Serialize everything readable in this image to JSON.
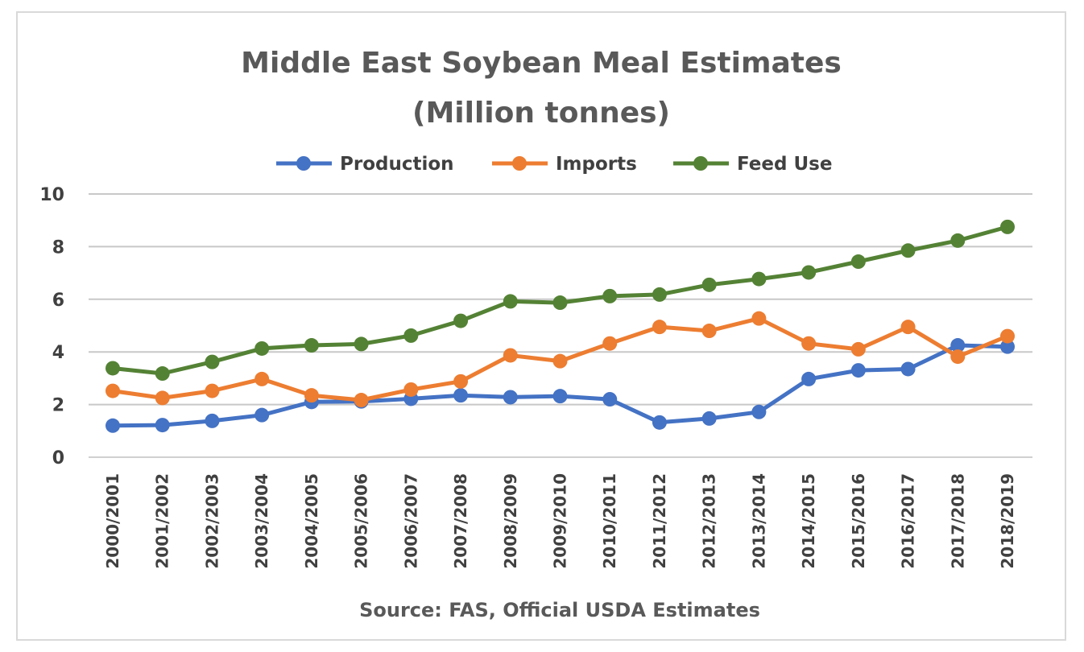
{
  "chart_data": {
    "type": "line",
    "title_lines": [
      "Middle East Soybean Meal Estimates",
      "(Million tonnes)"
    ],
    "xlabel": "Source: FAS, Official USDA Estimates",
    "ylabel": "",
    "ylim": [
      0,
      10
    ],
    "yticks": [
      "0",
      "2",
      "4",
      "6",
      "8",
      "10"
    ],
    "grid": true,
    "legend_position": "top",
    "categories": [
      "2000/2001",
      "2001/2002",
      "2002/2003",
      "2003/2004",
      "2004/2005",
      "2005/2006",
      "2006/2007",
      "2007/2008",
      "2008/2009",
      "2009/2010",
      "2010/2011",
      "2011/2012",
      "2012/2013",
      "2013/2014",
      "2014/2015",
      "2015/2016",
      "2016/2017",
      "2017/2018",
      "2018/2019"
    ],
    "series": [
      {
        "name": "Production",
        "color": "#4472c4",
        "values": [
          1.2,
          1.22,
          1.38,
          1.6,
          2.1,
          2.12,
          2.22,
          2.35,
          2.28,
          2.32,
          2.2,
          1.32,
          1.47,
          1.72,
          2.97,
          3.3,
          3.35,
          4.25,
          4.2
        ]
      },
      {
        "name": "Imports",
        "color": "#ed7d31",
        "values": [
          2.52,
          2.25,
          2.52,
          2.97,
          2.35,
          2.17,
          2.57,
          2.88,
          3.87,
          3.65,
          4.32,
          4.95,
          4.8,
          5.27,
          4.32,
          4.1,
          4.95,
          3.82,
          4.6
        ]
      },
      {
        "name": "Feed Use",
        "color": "#548235",
        "values": [
          3.38,
          3.18,
          3.62,
          4.13,
          4.25,
          4.3,
          4.62,
          5.18,
          5.92,
          5.87,
          6.12,
          6.18,
          6.55,
          6.77,
          7.02,
          7.43,
          7.85,
          8.23,
          8.75
        ]
      }
    ]
  }
}
